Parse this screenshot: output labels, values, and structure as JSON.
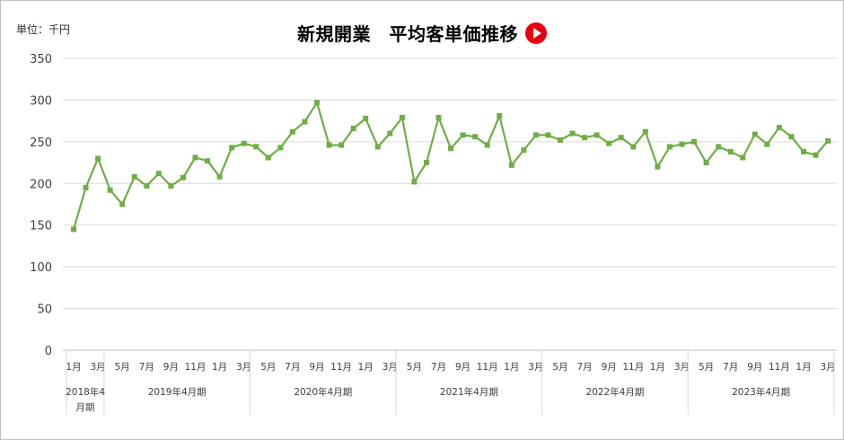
{
  "header": {
    "title": "新規開業　平均客単価推移",
    "unit": "単位：千円",
    "icon": "play-icon",
    "icon_color": "#e60012"
  },
  "chart_data": {
    "type": "line",
    "ylim": [
      0,
      350
    ],
    "yticks": [
      "0",
      "50",
      "100",
      "150",
      "200",
      "250",
      "300",
      "350"
    ],
    "grid": true,
    "line_color": "#70ad47",
    "x": [
      "1月",
      "2月",
      "3月",
      "4月",
      "5月",
      "6月",
      "7月",
      "8月",
      "9月",
      "10月",
      "11月",
      "12月",
      "1月",
      "2月",
      "3月",
      "4月",
      "5月",
      "6月",
      "7月",
      "8月",
      "9月",
      "10月",
      "11月",
      "12月",
      "1月",
      "2月",
      "3月",
      "4月",
      "5月",
      "6月",
      "7月",
      "8月",
      "9月",
      "10月",
      "11月",
      "12月",
      "1月",
      "2月",
      "3月",
      "4月",
      "5月",
      "6月",
      "7月",
      "8月",
      "9月",
      "10月",
      "11月",
      "12月",
      "1月",
      "2月",
      "3月",
      "4月",
      "5月",
      "6月",
      "7月",
      "8月",
      "9月",
      "10月",
      "11月",
      "12月",
      "1月",
      "2月",
      "3月"
    ],
    "tick_labels": [
      {
        "i": 0,
        "label": "1月"
      },
      {
        "i": 2,
        "label": "3月"
      },
      {
        "i": 4,
        "label": "5月"
      },
      {
        "i": 6,
        "label": "7月"
      },
      {
        "i": 8,
        "label": "9月"
      },
      {
        "i": 10,
        "label": "11月"
      },
      {
        "i": 12,
        "label": "1月"
      },
      {
        "i": 14,
        "label": "3月"
      },
      {
        "i": 16,
        "label": "5月"
      },
      {
        "i": 18,
        "label": "7月"
      },
      {
        "i": 20,
        "label": "9月"
      },
      {
        "i": 22,
        "label": "11月"
      },
      {
        "i": 24,
        "label": "1月"
      },
      {
        "i": 26,
        "label": "3月"
      },
      {
        "i": 28,
        "label": "5月"
      },
      {
        "i": 30,
        "label": "7月"
      },
      {
        "i": 32,
        "label": "9月"
      },
      {
        "i": 34,
        "label": "11月"
      },
      {
        "i": 36,
        "label": "1月"
      },
      {
        "i": 38,
        "label": "3月"
      },
      {
        "i": 40,
        "label": "5月"
      },
      {
        "i": 42,
        "label": "7月"
      },
      {
        "i": 44,
        "label": "9月"
      },
      {
        "i": 46,
        "label": "11月"
      },
      {
        "i": 48,
        "label": "1月"
      },
      {
        "i": 50,
        "label": "3月"
      },
      {
        "i": 52,
        "label": "5月"
      },
      {
        "i": 54,
        "label": "7月"
      },
      {
        "i": 56,
        "label": "9月"
      },
      {
        "i": 58,
        "label": "11月"
      },
      {
        "i": 60,
        "label": "1月"
      },
      {
        "i": 62,
        "label": "3月"
      }
    ],
    "groups": [
      {
        "label": "2018年4月期",
        "start": 0,
        "end": 2
      },
      {
        "label": "2019年4月期",
        "start": 3,
        "end": 14
      },
      {
        "label": "2020年4月期",
        "start": 15,
        "end": 26
      },
      {
        "label": "2021年4月期",
        "start": 27,
        "end": 38
      },
      {
        "label": "2022年4月期",
        "start": 39,
        "end": 50
      },
      {
        "label": "2023年4月期",
        "start": 51,
        "end": 62
      }
    ],
    "series": [
      {
        "values": [
          145,
          195,
          230,
          192,
          175,
          208,
          197,
          212,
          197,
          207,
          231,
          227,
          208,
          243,
          248,
          244,
          231,
          243,
          262,
          274,
          297,
          246,
          246,
          266,
          278,
          244,
          260,
          279,
          202,
          225,
          279,
          242,
          258,
          256,
          246,
          281,
          222,
          240,
          258,
          258,
          252,
          260,
          255,
          258,
          248,
          255,
          244,
          262,
          220,
          244,
          247,
          250,
          225,
          244,
          238,
          231,
          259,
          247,
          267,
          256,
          238,
          234,
          251
        ]
      }
    ]
  }
}
